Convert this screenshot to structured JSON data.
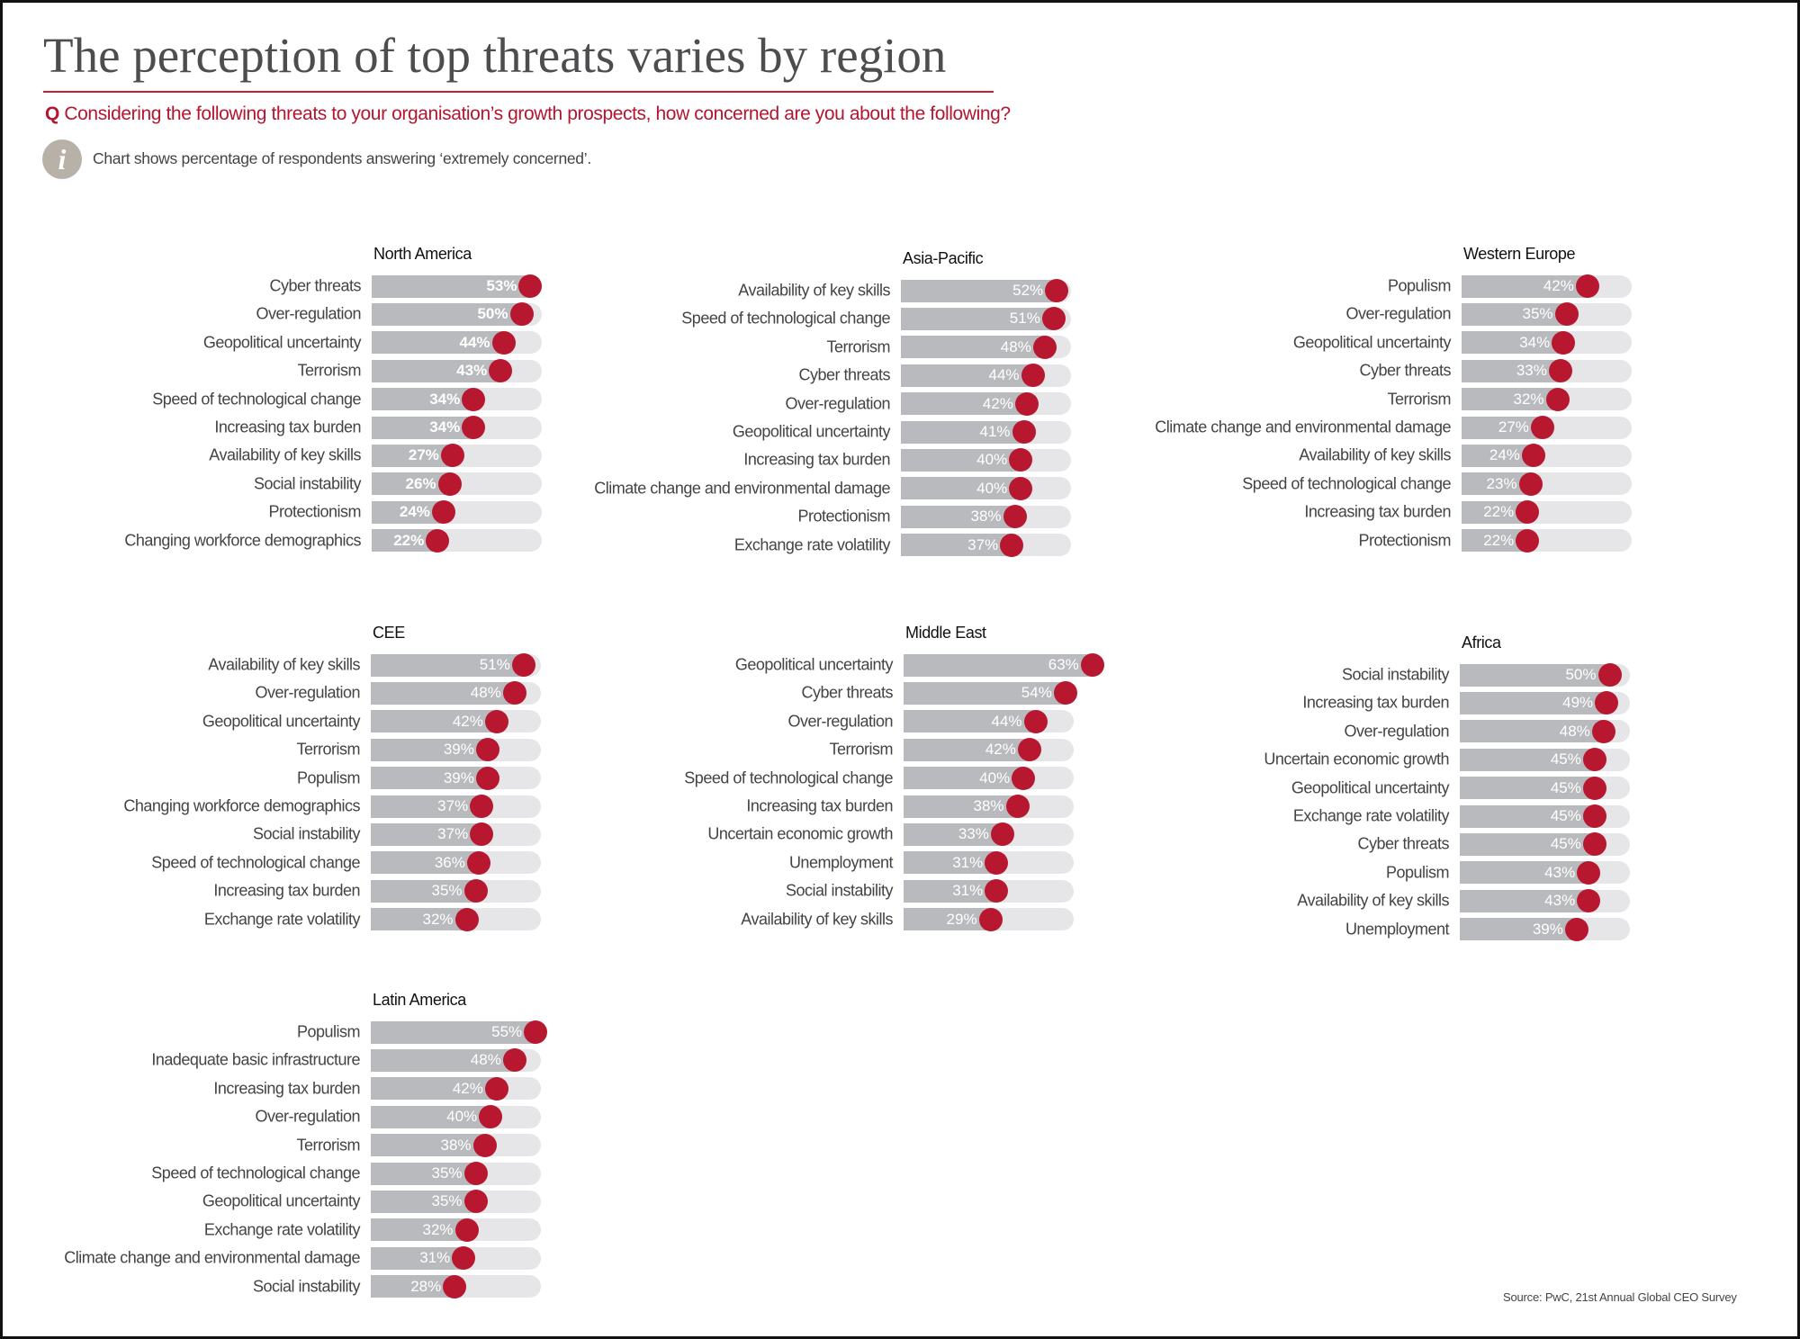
{
  "header": {
    "title": "The perception of top threats varies by region",
    "question_prefix": "Q",
    "question": "Considering the following threats to your organisation’s growth prospects, how concerned are you about the following?",
    "info_icon": "i",
    "note": "Chart shows percentage of respondents answering ‘extremely concerned’."
  },
  "source": "Source: PwC, 21st Annual Global CEO Survey",
  "colors": {
    "accent": "#b8182f",
    "bar": "#b9babd",
    "track": "#e6e6e8"
  },
  "chart_data": {
    "type": "bar",
    "unit": "%",
    "panels": [
      {
        "title": "North America",
        "bold_labels": true,
        "rows": [
          {
            "label": "Cyber threats",
            "value": 53,
            "text": "53%"
          },
          {
            "label": "Over-regulation",
            "value": 50,
            "text": "50%"
          },
          {
            "label": "Geopolitical uncertainty",
            "value": 44,
            "text": "44%"
          },
          {
            "label": "Terrorism",
            "value": 43,
            "text": "43%"
          },
          {
            "label": "Speed of technological change",
            "value": 34,
            "text": "34%"
          },
          {
            "label": "Increasing tax burden",
            "value": 34,
            "text": "34%"
          },
          {
            "label": "Availability of key skills",
            "value": 27,
            "text": "27%"
          },
          {
            "label": "Social instability",
            "value": 26,
            "text": "26%"
          },
          {
            "label": "Protectionism",
            "value": 24,
            "text": "24%"
          },
          {
            "label": "Changing workforce demographics",
            "value": 22,
            "text": "22%"
          }
        ]
      },
      {
        "title": "Asia-Pacific",
        "rows": [
          {
            "label": "Availability of key skills",
            "value": 52,
            "text": "52%"
          },
          {
            "label": "Speed of technological change",
            "value": 51,
            "text": "51%"
          },
          {
            "label": "Terrorism",
            "value": 48,
            "text": "48%"
          },
          {
            "label": "Cyber threats",
            "value": 44,
            "text": "44%"
          },
          {
            "label": "Over-regulation",
            "value": 42,
            "text": "42%"
          },
          {
            "label": "Geopolitical uncertainty",
            "value": 41,
            "text": "41%"
          },
          {
            "label": "Increasing tax burden",
            "value": 40,
            "text": "40%"
          },
          {
            "label": "Climate change and environmental damage",
            "value": 40,
            "text": "40%"
          },
          {
            "label": "Protectionism",
            "value": 38,
            "text": "38%"
          },
          {
            "label": "Exchange rate volatility",
            "value": 37,
            "text": "37%"
          }
        ]
      },
      {
        "title": "Western Europe",
        "rows": [
          {
            "label": "Populism",
            "value": 42,
            "text": "42%"
          },
          {
            "label": "Over-regulation",
            "value": 35,
            "text": "35%"
          },
          {
            "label": "Geopolitical uncertainty",
            "value": 34,
            "text": "34%"
          },
          {
            "label": "Cyber threats",
            "value": 33,
            "text": "33%"
          },
          {
            "label": "Terrorism",
            "value": 32,
            "text": "32%"
          },
          {
            "label": "Climate change and environmental damage",
            "value": 27,
            "text": "27%"
          },
          {
            "label": "Availability of key skills",
            "value": 24,
            "text": "24%"
          },
          {
            "label": "Speed of technological change",
            "value": 23,
            "text": "23%"
          },
          {
            "label": "Increasing tax burden",
            "value": 22,
            "text": "22%"
          },
          {
            "label": "Protectionism",
            "value": 22,
            "text": "22%"
          }
        ]
      },
      {
        "title": "CEE",
        "rows": [
          {
            "label": "Availability of key skills",
            "value": 51,
            "text": "51%"
          },
          {
            "label": "Over-regulation",
            "value": 48,
            "text": "48%"
          },
          {
            "label": "Geopolitical uncertainty",
            "value": 42,
            "text": "42%"
          },
          {
            "label": "Terrorism",
            "value": 39,
            "text": "39%"
          },
          {
            "label": "Populism",
            "value": 39,
            "text": "39%"
          },
          {
            "label": "Changing workforce demographics",
            "value": 37,
            "text": "37%"
          },
          {
            "label": "Social instability",
            "value": 37,
            "text": "37%"
          },
          {
            "label": "Speed of technological change",
            "value": 36,
            "text": "36%"
          },
          {
            "label": "Increasing tax burden",
            "value": 35,
            "text": "35%"
          },
          {
            "label": "Exchange rate volatility",
            "value": 32,
            "text": "32%"
          }
        ]
      },
      {
        "title": "Middle East",
        "rows": [
          {
            "label": "Geopolitical uncertainty",
            "value": 63,
            "text": "63%"
          },
          {
            "label": "Cyber threats",
            "value": 54,
            "text": "54%"
          },
          {
            "label": "Over-regulation",
            "value": 44,
            "text": "44%"
          },
          {
            "label": "Terrorism",
            "value": 42,
            "text": "42%"
          },
          {
            "label": "Speed of technological change",
            "value": 40,
            "text": "40%"
          },
          {
            "label": "Increasing tax burden",
            "value": 38,
            "text": "38%"
          },
          {
            "label": "Uncertain economic growth",
            "value": 33,
            "text": "33%"
          },
          {
            "label": "Unemployment",
            "value": 31,
            "text": "31%"
          },
          {
            "label": "Social instability",
            "value": 31,
            "text": "31%"
          },
          {
            "label": "Availability of key skills",
            "value": 29,
            "text": "29%"
          }
        ]
      },
      {
        "title": "Africa",
        "rows": [
          {
            "label": "Social instability",
            "value": 50,
            "text": "50%"
          },
          {
            "label": "Increasing tax burden",
            "value": 49,
            "text": "49%"
          },
          {
            "label": "Over-regulation",
            "value": 48,
            "text": "48%"
          },
          {
            "label": "Uncertain economic growth",
            "value": 45,
            "text": "45%"
          },
          {
            "label": "Geopolitical uncertainty",
            "value": 45,
            "text": "45%"
          },
          {
            "label": "Exchange rate volatility",
            "value": 45,
            "text": "45%"
          },
          {
            "label": "Cyber threats",
            "value": 45,
            "text": "45%"
          },
          {
            "label": "Populism",
            "value": 43,
            "text": "43%"
          },
          {
            "label": "Availability of key skills",
            "value": 43,
            "text": "43%"
          },
          {
            "label": "Unemployment",
            "value": 39,
            "text": "39%"
          }
        ]
      },
      {
        "title": "Latin America",
        "rows": [
          {
            "label": "Populism",
            "value": 55,
            "text": "55%"
          },
          {
            "label": "Inadequate basic infrastructure",
            "value": 48,
            "text": "48%"
          },
          {
            "label": "Increasing tax burden",
            "value": 42,
            "text": "42%"
          },
          {
            "label": "Over-regulation",
            "value": 40,
            "text": "40%"
          },
          {
            "label": "Terrorism",
            "value": 38,
            "text": "38%"
          },
          {
            "label": "Speed of technological change",
            "value": 35,
            "text": "35%"
          },
          {
            "label": "Geopolitical uncertainty",
            "value": 35,
            "text": "35%"
          },
          {
            "label": "Exchange rate volatility",
            "value": 32,
            "text": "32%"
          },
          {
            "label": "Climate change and environmental damage",
            "value": 31,
            "text": "31%"
          },
          {
            "label": "Social instability",
            "value": 28,
            "text": "28%"
          }
        ]
      }
    ]
  }
}
